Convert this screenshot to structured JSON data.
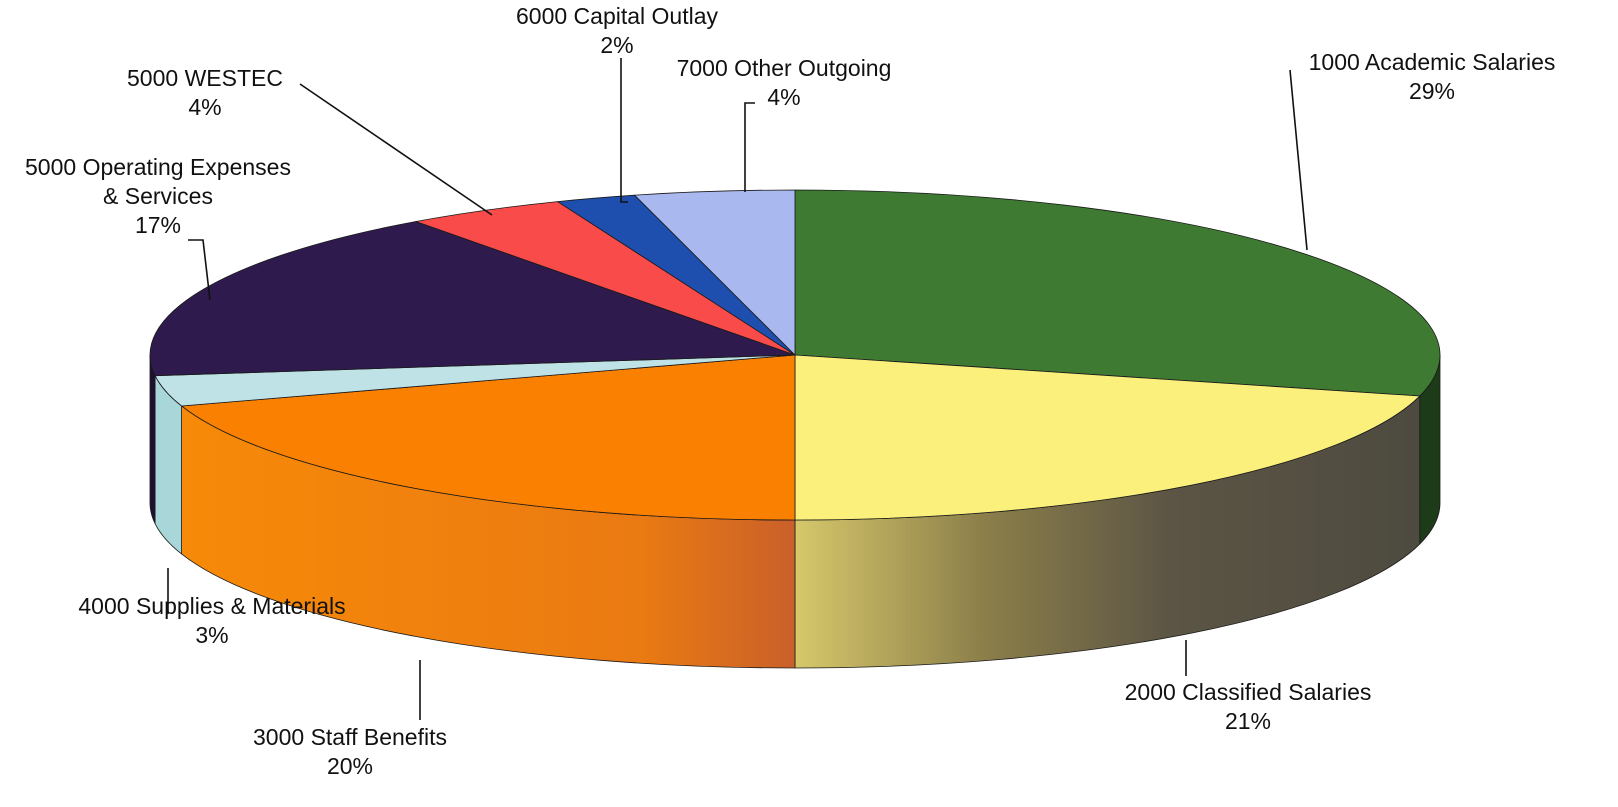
{
  "chart_data": {
    "type": "pie",
    "style": "3d",
    "slices": [
      {
        "category": "1000 Academic Salaries",
        "percent_label": "29%",
        "value": 29,
        "color": "#3f7a33",
        "side_color": "#1e3b19"
      },
      {
        "category": "2000 Classified Salaries",
        "percent_label": "21%",
        "value": 21,
        "color": "#fbf07c",
        "side_color": "#57513f"
      },
      {
        "category": "3000 Staff Benefits",
        "percent_label": "20%",
        "value": 20,
        "color": "#fa8002",
        "side_color": "#f38008"
      },
      {
        "category": "4000 Supplies & Materials",
        "percent_label": "3%",
        "value": 3,
        "color": "#bfe2e6",
        "side_color": "#a9d6d8"
      },
      {
        "category": "5000 Operating Expenses & Services",
        "category_lines": [
          "5000 Operating Expenses",
          "& Services"
        ],
        "percent_label": "17%",
        "value": 17,
        "color": "#2e1a4c",
        "side_color": "#1e1033"
      },
      {
        "category": "5000 WESTEC",
        "percent_label": "4%",
        "value": 4,
        "color": "#fa4b4b",
        "side_color": "#b23030"
      },
      {
        "category": "6000 Capital Outlay",
        "percent_label": "2%",
        "value": 2,
        "color": "#1f4fae",
        "side_color": "#16367a"
      },
      {
        "category": "7000 Other Outgoing",
        "percent_label": "4%",
        "value": 4,
        "color": "#a9b9ef",
        "side_color": "#7f8fc6"
      }
    ]
  }
}
